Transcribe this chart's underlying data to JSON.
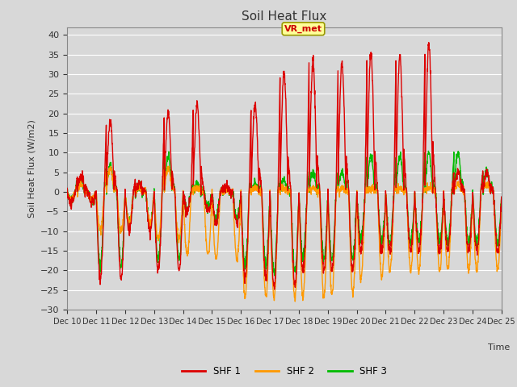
{
  "title": "Soil Heat Flux",
  "ylabel": "Soil Heat Flux (W/m2)",
  "xlabel": "Time",
  "ylim": [
    -30,
    42
  ],
  "yticks": [
    -30,
    -25,
    -20,
    -15,
    -10,
    -5,
    0,
    5,
    10,
    15,
    20,
    25,
    30,
    35,
    40
  ],
  "colors": {
    "SHF1": "#dd0000",
    "SHF2": "#ff9900",
    "SHF3": "#00bb00"
  },
  "legend_labels": [
    "SHF 1",
    "SHF 2",
    "SHF 3"
  ],
  "annotation_text": "VR_met",
  "annotation_color": "#cc0000",
  "annotation_bg": "#ffff99",
  "plot_bg": "#d8d8d8",
  "grid_color": "#ffffff",
  "n_days": 15,
  "start_day": 10,
  "points_per_day": 144,
  "figwidth": 6.4,
  "figheight": 4.8,
  "dpi": 100,
  "shf1_peaks": [
    4,
    18,
    2,
    20,
    22,
    1.5,
    22,
    30,
    33,
    33,
    35,
    35,
    38,
    5,
    5
  ],
  "shf1_valleys": [
    -3,
    -22,
    -10,
    -20,
    -5,
    -8,
    -22,
    -24,
    -20,
    -20,
    -15,
    -15,
    -15,
    -15,
    -15
  ],
  "shf2_peaks": [
    2,
    6,
    1,
    6,
    1,
    0.5,
    1,
    1,
    1,
    1,
    1,
    1,
    1,
    2,
    2
  ],
  "shf2_valleys": [
    -2,
    -10,
    -8,
    -12,
    -16,
    -17,
    -27,
    -27,
    -27,
    -26,
    -22,
    -20,
    -20,
    -20,
    -20
  ],
  "shf3_peaks": [
    3,
    7,
    1.5,
    9,
    2,
    1,
    2,
    3,
    5,
    5,
    9,
    9,
    10,
    10,
    5
  ],
  "shf3_valleys": [
    -2,
    -18,
    -8,
    -17,
    -5,
    -7,
    -20,
    -22,
    -16,
    -16,
    -13,
    -13,
    -13,
    -13,
    -13
  ]
}
